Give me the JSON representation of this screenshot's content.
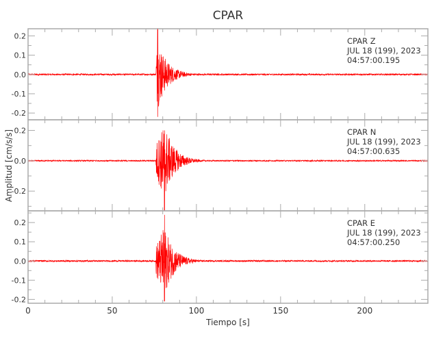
{
  "chart_data": {
    "type": "line",
    "title": "CPAR",
    "xlabel": "Tiempo [s]",
    "ylabel": "Amplitud [cm/s/s]",
    "xlim": [
      0,
      237.5
    ],
    "xticks": [
      0,
      50,
      100,
      150,
      200
    ],
    "x_minor_step": 10,
    "grid": false,
    "colors": {
      "trace": "#ff0000",
      "axis": "#aaaaaa",
      "text": "#333333"
    },
    "panels": [
      {
        "component": "Z",
        "label_lines": [
          "CPAR   Z",
          "JUL 18 (199), 2023",
          "04:57:00.195"
        ],
        "ylim": [
          -0.235,
          0.237
        ],
        "yticks": [
          -0.2,
          -0.1,
          0.0,
          0.1,
          0.2
        ],
        "ytick_labels": [
          "-0.2",
          "-0.1",
          "0.0",
          "0.1",
          "0.2"
        ],
        "onset_s": 76,
        "peak_time_s": 77,
        "peak_max": 0.24,
        "peak_min": -0.22,
        "noise": 0.004,
        "coda_end_s": 110
      },
      {
        "component": "N",
        "label_lines": [
          "CPAR   N",
          "JUL 18 (199), 2023",
          "04:57:00.635"
        ],
        "ylim": [
          -0.33,
          0.27
        ],
        "yticks": [
          -0.2,
          0.0,
          0.2
        ],
        "ytick_labels": [
          "-0.2",
          "0.0",
          "0.2"
        ],
        "onset_s": 76,
        "peak_time_s": 81,
        "peak_max": 0.2,
        "peak_min": -0.33,
        "noise": 0.004,
        "coda_end_s": 110
      },
      {
        "component": "E",
        "label_lines": [
          "CPAR   E",
          "JUL 18 (199), 2023",
          "04:57:00.250"
        ],
        "ylim": [
          -0.22,
          0.261
        ],
        "yticks": [
          -0.2,
          -0.1,
          0.0,
          0.1,
          0.2
        ],
        "ytick_labels": [
          "-0.2",
          "-0.1",
          "0.0",
          "0.1",
          "0.2"
        ],
        "onset_s": 76,
        "peak_time_s": 81,
        "peak_max": 0.24,
        "peak_min": -0.21,
        "noise": 0.004,
        "coda_end_s": 110
      }
    ]
  }
}
